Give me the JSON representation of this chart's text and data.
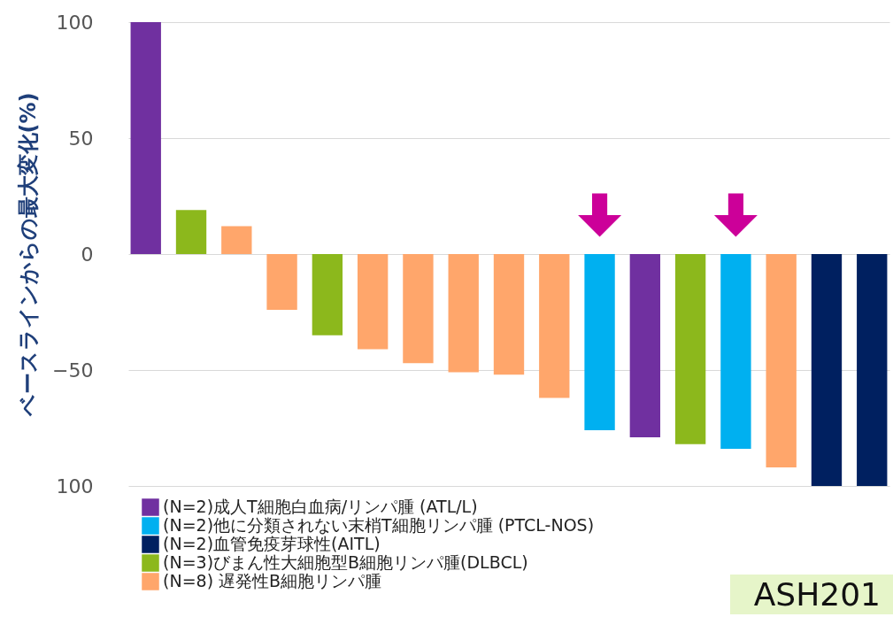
{
  "chart_data": {
    "type": "bar",
    "ylabel": "ベースラインからの最大変化(%)",
    "categories": [
      null,
      null,
      null,
      null,
      null,
      null,
      null,
      null,
      null,
      null,
      null,
      null,
      null,
      null,
      null,
      null,
      null
    ],
    "series": [
      {
        "name": "(N=2)成人T細胞白血病/リンパ腫 (ATL/L)",
        "color": "#7030a0",
        "values": [
          100,
          null,
          null,
          null,
          null,
          null,
          null,
          null,
          null,
          null,
          null,
          -79,
          null,
          null,
          null,
          null,
          null
        ]
      },
      {
        "name": "(N=2)他に分類されない末梢T細胞リンパ腫 (PTCL-NOS)",
        "color": "#00b0f0",
        "values": [
          null,
          null,
          null,
          null,
          null,
          null,
          null,
          null,
          null,
          null,
          -76,
          null,
          null,
          -84,
          null,
          null,
          null
        ]
      },
      {
        "name": "(N=2)血管免疫芽球性(AITL)",
        "color": "#002060",
        "values": [
          null,
          null,
          null,
          null,
          null,
          null,
          null,
          null,
          null,
          null,
          null,
          null,
          null,
          null,
          null,
          -100,
          -100
        ]
      },
      {
        "name": "(N=3)びまん性大細胞型B細胞リンパ腫(DLBCL)",
        "color": "#8cb81c",
        "values": [
          null,
          19,
          null,
          null,
          -35,
          null,
          null,
          null,
          null,
          null,
          null,
          null,
          -82,
          null,
          null,
          null,
          null
        ]
      },
      {
        "name": "(N=8) 遅発性B細胞リンパ腫",
        "color": "#ffa66b",
        "values": [
          null,
          null,
          12,
          -24,
          null,
          -41,
          -47,
          -51,
          -52,
          -62,
          null,
          null,
          null,
          null,
          -92,
          null,
          null
        ]
      }
    ],
    "ylim": [
      -100,
      100
    ],
    "yticks": [
      100,
      50,
      0,
      -50,
      {
        "value": -100,
        "label": "100"
      }
    ],
    "grid": "y",
    "legend": "bottom left",
    "annotations": [
      "ASH201"
    ]
  }
}
